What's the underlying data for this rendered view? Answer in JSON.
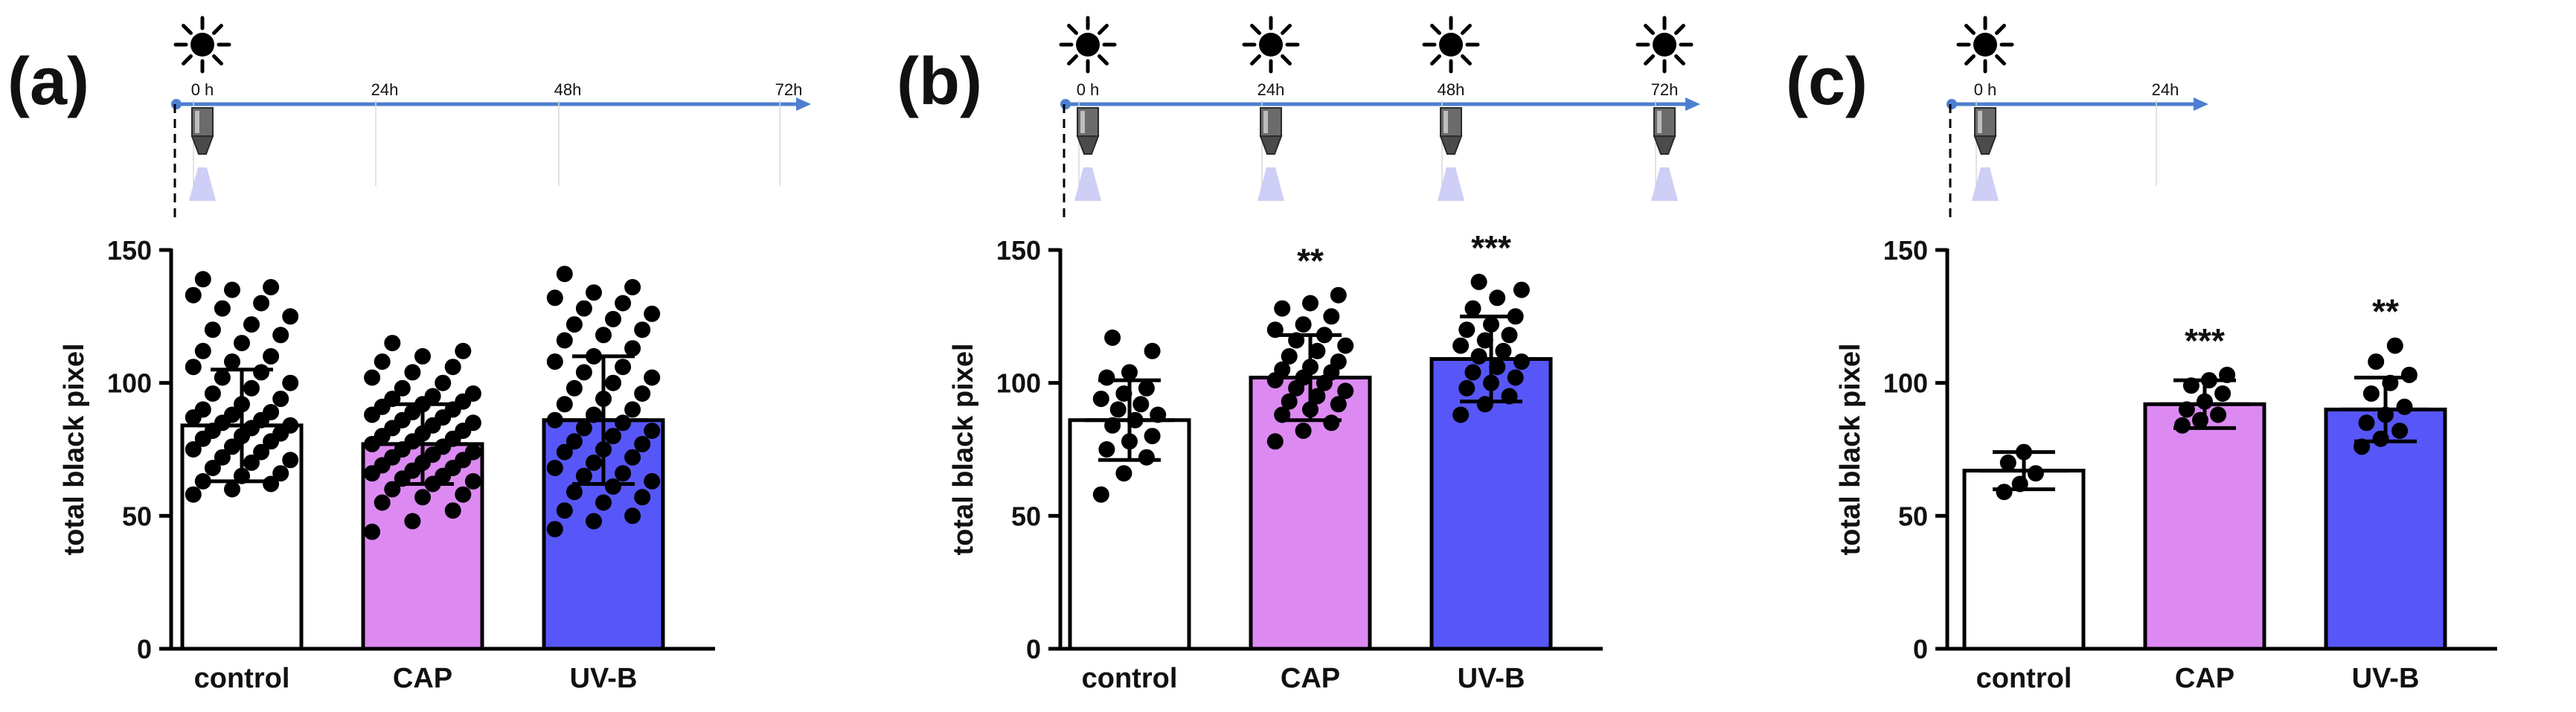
{
  "colors": {
    "control": "#ffffff",
    "CAP": "#dc8af2",
    "UV-B": "#5757f9",
    "timeline": "#4d7fcf",
    "point": "#000000",
    "axis": "#000000"
  },
  "chart_data": [
    {
      "type": "bar",
      "panel_label": "(a)",
      "timeline": {
        "labels": [
          "0 h",
          "24h",
          "48h",
          "72h"
        ],
        "exposures": [
          "0 h"
        ]
      },
      "categories": [
        "control",
        "CAP",
        "UV-B"
      ],
      "values": [
        84,
        77,
        86
      ],
      "sd": [
        21,
        15,
        24
      ],
      "significance": [
        "",
        "",
        ""
      ],
      "ylabel": "total black pixel",
      "ylim": [
        0,
        150
      ],
      "yticks": [
        0,
        50,
        100,
        150
      ],
      "points": [
        [
          58,
          60,
          62,
          63,
          65,
          66,
          68,
          70,
          71,
          72,
          74,
          75,
          76,
          78,
          79,
          80,
          81,
          82,
          83,
          84,
          85,
          86,
          87,
          88,
          89,
          90,
          92,
          94,
          96,
          98,
          100,
          102,
          104,
          106,
          108,
          110,
          112,
          115,
          118,
          120,
          122,
          125,
          128,
          130,
          133,
          135,
          136,
          139
        ],
        [
          44,
          48,
          52,
          55,
          57,
          58,
          60,
          62,
          63,
          64,
          65,
          66,
          67,
          68,
          69,
          70,
          71,
          72,
          73,
          74,
          75,
          76,
          77,
          78,
          79,
          80,
          81,
          82,
          83,
          84,
          85,
          86,
          87,
          88,
          89,
          90,
          91,
          92,
          93,
          94,
          95,
          96,
          98,
          100,
          102,
          104,
          106,
          108,
          110,
          112,
          115
        ],
        [
          45,
          48,
          50,
          52,
          55,
          57,
          59,
          61,
          63,
          65,
          66,
          68,
          70,
          72,
          74,
          75,
          77,
          78,
          80,
          82,
          83,
          85,
          86,
          88,
          90,
          92,
          94,
          96,
          98,
          100,
          102,
          104,
          106,
          108,
          110,
          113,
          116,
          118,
          120,
          122,
          124,
          126,
          128,
          130,
          132,
          134,
          136,
          141
        ]
      ]
    },
    {
      "type": "bar",
      "panel_label": "(b)",
      "timeline": {
        "labels": [
          "0 h",
          "24h",
          "48h",
          "72h"
        ],
        "exposures": [
          "0 h",
          "24h",
          "48h",
          "72h"
        ]
      },
      "categories": [
        "control",
        "CAP",
        "UV-B"
      ],
      "values": [
        86,
        102,
        109
      ],
      "sd": [
        15,
        16,
        16
      ],
      "significance": [
        "",
        "**",
        "***"
      ],
      "ylabel": "total black pixel",
      "ylim": [
        0,
        150
      ],
      "yticks": [
        0,
        50,
        100,
        150
      ],
      "points": [
        [
          58,
          66,
          72,
          75,
          78,
          80,
          84,
          86,
          88,
          90,
          92,
          94,
          96,
          98,
          102,
          104,
          112,
          117
        ],
        [
          78,
          82,
          85,
          88,
          90,
          92,
          93,
          95,
          97,
          98,
          100,
          101,
          102,
          104,
          105,
          106,
          108,
          110,
          112,
          114,
          116,
          118,
          120,
          122,
          125,
          128,
          130,
          133
        ],
        [
          88,
          92,
          95,
          98,
          100,
          102,
          104,
          106,
          108,
          110,
          112,
          114,
          116,
          118,
          120,
          122,
          125,
          128,
          132,
          135,
          138
        ]
      ]
    },
    {
      "type": "bar",
      "panel_label": "(c)",
      "timeline": {
        "labels": [
          "0 h",
          "24h"
        ],
        "exposures": [
          "0 h"
        ]
      },
      "categories": [
        "control",
        "CAP",
        "UV-B"
      ],
      "values": [
        67,
        92,
        90
      ],
      "sd": [
        7,
        9,
        12
      ],
      "significance": [
        "",
        "***",
        "**"
      ],
      "ylabel": "total black pixel",
      "ylim": [
        0,
        150
      ],
      "yticks": [
        0,
        50,
        100,
        150
      ],
      "points": [
        [
          59,
          62,
          66,
          70,
          74
        ],
        [
          84,
          86,
          88,
          90,
          93,
          96,
          99,
          101,
          103
        ],
        [
          76,
          79,
          82,
          85,
          88,
          91,
          96,
          100,
          103,
          108,
          114
        ]
      ]
    }
  ]
}
